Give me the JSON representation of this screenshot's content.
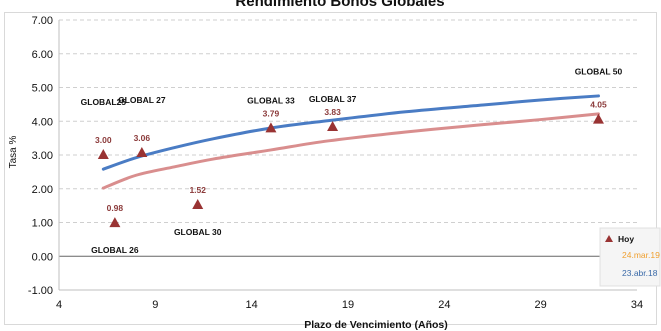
{
  "chart_data": {
    "type": "scatter",
    "title": "Rendimiento Bonos Globales",
    "xlabel": "Plazo de Vencimiento  (Años)",
    "ylabel": "Tasa %",
    "xlim": [
      4,
      34
    ],
    "ylim": [
      -1,
      7
    ],
    "x_ticks": [
      "4",
      "9",
      "14",
      "19",
      "24",
      "29",
      "34"
    ],
    "y_ticks": [
      "-1.00",
      "0.00",
      "1.00",
      "2.00",
      "3.00",
      "4.00",
      "5.00",
      "6.00",
      "7.00"
    ],
    "grid": "horizontal dashed",
    "legend_position": "bottom-right",
    "series": [
      {
        "name": "Hoy",
        "type": "scatter",
        "marker": "triangle",
        "color": "#993333",
        "label_color": "#8b3a3a",
        "points": [
          {
            "bond": "GLOBAL25",
            "x": 6.3,
            "y": 3.0,
            "value_label": "3.00"
          },
          {
            "bond": "GLOBAL 26",
            "x": 6.9,
            "y": 0.98,
            "value_label": "0.98"
          },
          {
            "bond": "GLOBAL 27",
            "x": 8.3,
            "y": 3.06,
            "value_label": "3.06"
          },
          {
            "bond": "GLOBAL 30",
            "x": 11.2,
            "y": 1.52,
            "value_label": "1.52"
          },
          {
            "bond": "GLOBAL 33",
            "x": 15.0,
            "y": 3.79,
            "value_label": "3.79"
          },
          {
            "bond": "GLOBAL 37",
            "x": 18.2,
            "y": 3.83,
            "value_label": "3.83"
          },
          {
            "bond": "GLOBAL 50",
            "x": 32.0,
            "y": 4.05,
            "value_label": "4.05"
          }
        ]
      },
      {
        "name": "24.mar.19",
        "type": "line",
        "color": "#d98e8e",
        "legend_text_color": "#f0a030",
        "x": [
          6.3,
          8,
          10,
          12,
          15,
          18,
          22,
          26,
          29,
          32
        ],
        "y": [
          2.02,
          2.4,
          2.65,
          2.88,
          3.15,
          3.42,
          3.68,
          3.9,
          4.05,
          4.22
        ]
      },
      {
        "name": "23.abr.18",
        "type": "line",
        "color": "#4a7cc4",
        "legend_text_color": "#3a6aa8",
        "x": [
          6.3,
          8,
          10,
          12,
          15,
          18,
          22,
          26,
          29,
          32
        ],
        "y": [
          2.58,
          2.92,
          3.22,
          3.48,
          3.8,
          4.02,
          4.28,
          4.48,
          4.63,
          4.75
        ]
      }
    ],
    "annotations": [
      {
        "text": "GLOBAL25",
        "anchor_x": 6.3,
        "anchor_y": 3.0,
        "side": "above-far"
      },
      {
        "text": "GLOBAL 26",
        "anchor_x": 6.9,
        "anchor_y": 0.98,
        "side": "below"
      },
      {
        "text": "GLOBAL 27",
        "anchor_x": 8.3,
        "anchor_y": 3.06,
        "side": "above-far"
      },
      {
        "text": "GLOBAL 30",
        "anchor_x": 11.2,
        "anchor_y": 1.52,
        "side": "below"
      },
      {
        "text": "GLOBAL 33",
        "anchor_x": 15.0,
        "anchor_y": 3.79,
        "side": "above-far"
      },
      {
        "text": "GLOBAL 37",
        "anchor_x": 18.2,
        "anchor_y": 3.83,
        "side": "above-far"
      },
      {
        "text": "GLOBAL 50",
        "anchor_x": 32.0,
        "anchor_y": 4.05,
        "side": "above-far"
      }
    ]
  }
}
